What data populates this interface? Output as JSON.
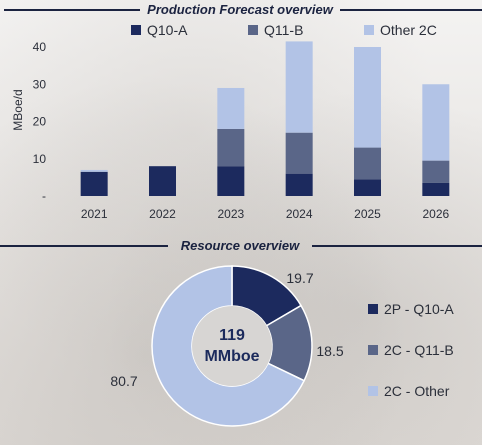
{
  "colors": {
    "q10a": "#1c2a5e",
    "q11b": "#5a6688",
    "other": "#b2c3e6",
    "title_rule": "#1b2340",
    "center_fill": "#d7d5d3"
  },
  "chart_data": [
    {
      "type": "bar",
      "title": "Production Forecast overview",
      "ylabel": "MBoe/d",
      "ylim": [
        0,
        40
      ],
      "yticks": [
        "-",
        "10",
        "20",
        "30",
        "40"
      ],
      "categories": [
        "2021",
        "2022",
        "2023",
        "2024",
        "2025",
        "2026"
      ],
      "stacked": true,
      "legend": "top",
      "series": [
        {
          "name": "Q10-A",
          "values": [
            6.5,
            8,
            8,
            6,
            4.5,
            3.5
          ]
        },
        {
          "name": "Q11-B",
          "values": [
            0,
            0,
            10,
            11,
            8.5,
            6
          ]
        },
        {
          "name": "Other 2C",
          "values": [
            0.5,
            0,
            11,
            24.5,
            27,
            20.5
          ]
        }
      ]
    },
    {
      "type": "pie",
      "title": "Resource overview",
      "center_value": "119",
      "center_unit": "MMboe",
      "legend": "right",
      "slices": [
        {
          "name": "2P - Q10-A",
          "value": 19.7,
          "label": "19.7"
        },
        {
          "name": "2C - Q11-B",
          "value": 18.5,
          "label": "18.5"
        },
        {
          "name": "2C - Other",
          "value": 80.7,
          "label": "80.7"
        }
      ]
    }
  ]
}
